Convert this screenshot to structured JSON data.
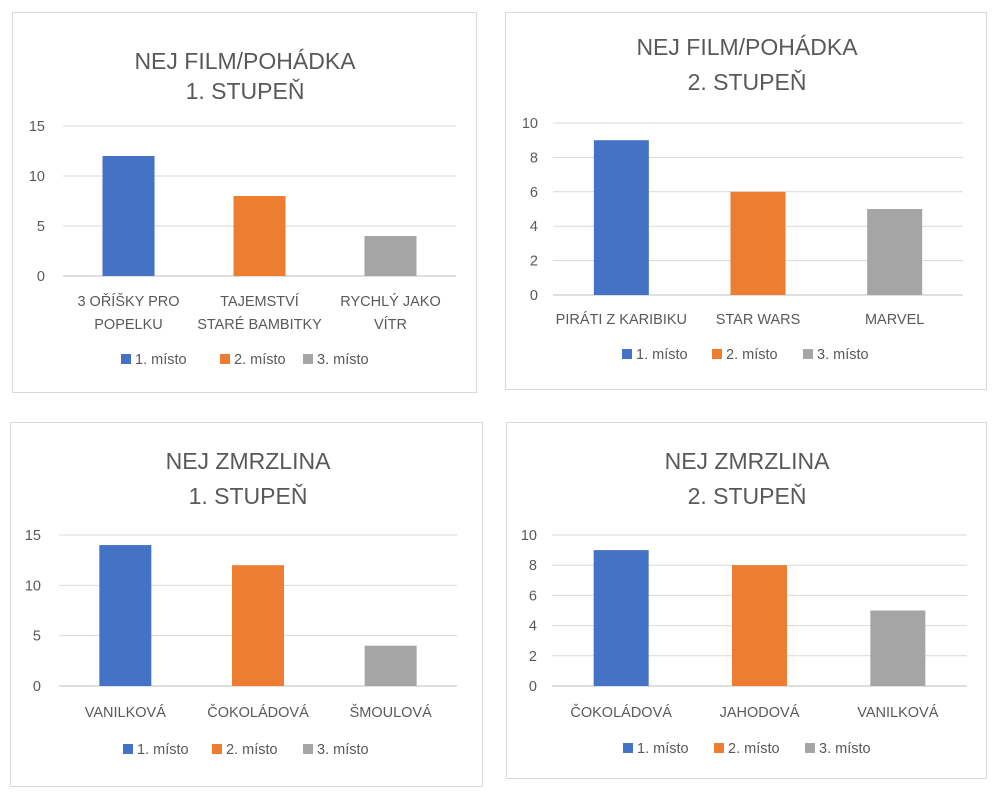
{
  "chart_data": [
    {
      "type": "bar",
      "title": [
        "NEJ FILM/POHÁDKA",
        "1. STUPEŇ"
      ],
      "categories": [
        [
          "3 OŘÍŠKY PRO",
          "POPELKU"
        ],
        [
          "TAJEMSTVÍ",
          "STARÉ BAMBITKY"
        ],
        [
          "RYCHLÝ JAKO",
          "VÍTR"
        ]
      ],
      "values": [
        12,
        8,
        4
      ],
      "legend": [
        "1. místo",
        "2. místo",
        "3. místo"
      ],
      "colors": [
        "#4472c4",
        "#ed7d31",
        "#a5a5a5"
      ],
      "ylim": [
        0,
        15
      ],
      "yticks": [
        0,
        5,
        10,
        15
      ],
      "grid": true,
      "legend_position": "bottom"
    },
    {
      "type": "bar",
      "title": [
        "NEJ FILM/POHÁDKA",
        "2. STUPEŇ"
      ],
      "categories": [
        [
          "PIRÁTI Z KARIBIKU"
        ],
        [
          "STAR WARS"
        ],
        [
          "MARVEL"
        ]
      ],
      "values": [
        9,
        6,
        5
      ],
      "legend": [
        "1. místo",
        "2. místo",
        "3. místo"
      ],
      "colors": [
        "#4472c4",
        "#ed7d31",
        "#a5a5a5"
      ],
      "ylim": [
        0,
        10
      ],
      "yticks": [
        0,
        2,
        4,
        6,
        8,
        10
      ],
      "grid": true,
      "legend_position": "bottom"
    },
    {
      "type": "bar",
      "title": [
        "NEJ ZMRZLINA",
        "1. STUPEŇ"
      ],
      "categories": [
        [
          "VANILKOVÁ"
        ],
        [
          "ČOKOLÁDOVÁ"
        ],
        [
          "ŠMOULOVÁ"
        ]
      ],
      "values": [
        14,
        12,
        4
      ],
      "legend": [
        "1. místo",
        "2. místo",
        "3. místo"
      ],
      "colors": [
        "#4472c4",
        "#ed7d31",
        "#a5a5a5"
      ],
      "ylim": [
        0,
        15
      ],
      "yticks": [
        0,
        5,
        10,
        15
      ],
      "grid": true,
      "legend_position": "bottom"
    },
    {
      "type": "bar",
      "title": [
        "NEJ ZMRZLINA",
        "2. STUPEŇ"
      ],
      "categories": [
        [
          "ČOKOLÁDOVÁ"
        ],
        [
          "JAHODOVÁ"
        ],
        [
          "VANILKOVÁ"
        ]
      ],
      "values": [
        9,
        8,
        5
      ],
      "legend": [
        "1. místo",
        "2. místo",
        "3. místo"
      ],
      "colors": [
        "#4472c4",
        "#ed7d31",
        "#a5a5a5"
      ],
      "ylim": [
        0,
        10
      ],
      "yticks": [
        0,
        2,
        4,
        6,
        8,
        10
      ],
      "grid": true,
      "legend_position": "bottom"
    }
  ]
}
